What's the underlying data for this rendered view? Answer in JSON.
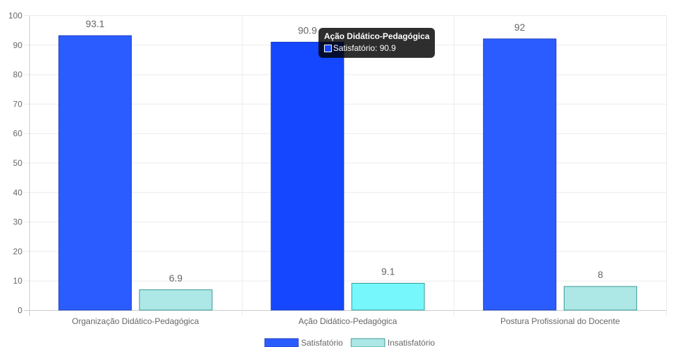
{
  "chart_data": {
    "type": "bar",
    "categories": [
      "Organização Didático-Pedagógica",
      "Ação Didático-Pedagógica",
      "Postura Profissional do Docente"
    ],
    "series": [
      {
        "name": "Satisfatório",
        "values": [
          93.1,
          90.9,
          92
        ],
        "color": "#2b5cff",
        "border": "#1f3fbf"
      },
      {
        "name": "Insatisfatório",
        "values": [
          6.9,
          9.1,
          8
        ],
        "color": "#ade8e6",
        "border": "#3a9a96"
      }
    ],
    "ylim": [
      0,
      100
    ],
    "yticks": [
      0,
      10,
      20,
      30,
      40,
      50,
      60,
      70,
      80,
      90,
      100
    ],
    "grid": true,
    "legend": "bottom",
    "highlight": {
      "category_index": 1,
      "series_index": 0,
      "color": "#1447ff",
      "insat_color": "#76f7fb"
    }
  },
  "tooltip": {
    "title": "Ação Didático-Pedagógica",
    "text": "Satisfatório: 90.9",
    "swatch_color": "#1447ff"
  }
}
